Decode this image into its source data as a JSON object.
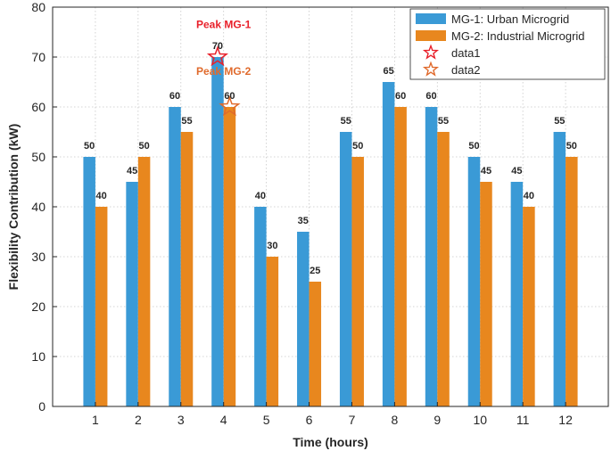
{
  "chart_data": {
    "type": "bar",
    "categories": [
      "1",
      "2",
      "3",
      "4",
      "5",
      "6",
      "7",
      "8",
      "9",
      "10",
      "11",
      "12"
    ],
    "series": [
      {
        "name": "MG-1: Urban Microgrid",
        "color": "#3a9ad6",
        "values": [
          50,
          45,
          60,
          70,
          40,
          35,
          55,
          65,
          60,
          50,
          45,
          55
        ]
      },
      {
        "name": "MG-2: Industrial Microgrid",
        "color": "#e8871e",
        "values": [
          40,
          50,
          55,
          60,
          30,
          25,
          50,
          60,
          55,
          45,
          40,
          50
        ]
      }
    ],
    "markers": [
      {
        "name": "data1",
        "x": "4",
        "series_index": 0,
        "value": 70,
        "color": "#e8202a"
      },
      {
        "name": "data2",
        "x": "4",
        "series_index": 1,
        "value": 60,
        "color": "#e06a2c"
      }
    ],
    "annotations": [
      {
        "text": "Peak MG-1",
        "color": "#e8202a",
        "x": "4",
        "value": 76.5
      },
      {
        "text": "Peak MG-2",
        "color": "#e06a2c",
        "x": "4",
        "value": 67.1
      }
    ],
    "xlabel": "Time (hours)",
    "ylabel": "Flexibility Contribution (kW)",
    "ylim": [
      0,
      80
    ],
    "yticks": [
      0,
      10,
      20,
      30,
      40,
      50,
      60,
      70,
      80
    ],
    "grid": true,
    "legend_location": "top-right"
  }
}
